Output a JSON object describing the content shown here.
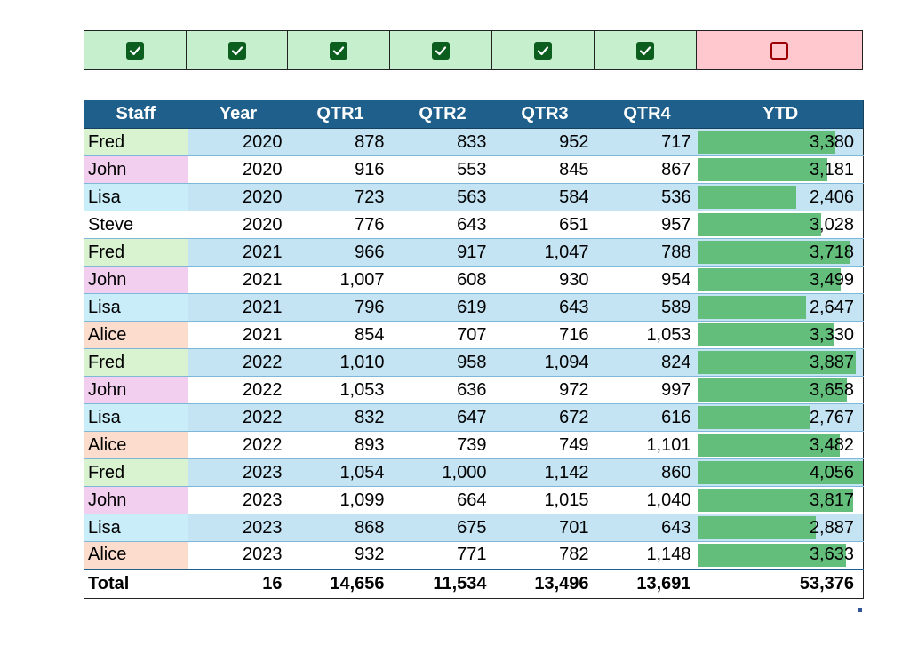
{
  "checkbox_strip": {
    "items": [
      {
        "checked": true
      },
      {
        "checked": true
      },
      {
        "checked": true
      },
      {
        "checked": true
      },
      {
        "checked": true
      },
      {
        "checked": true
      },
      {
        "checked": false
      }
    ]
  },
  "colors": {
    "header_bg": "#1f5f8b",
    "row_band_blue": "#c4e4f4",
    "databar": "#63be7b",
    "checked_bg": "#c6efce",
    "unchecked_bg": "#ffc7ce",
    "staff_colors": {
      "Fred": "#d9f2d0",
      "John": "#f2ceef",
      "Lisa": "#c9eefa",
      "Steve": "#ffffff",
      "Alice": "#fbdccd"
    }
  },
  "table": {
    "headers": [
      "Staff",
      "Year",
      "QTR1",
      "QTR2",
      "QTR3",
      "QTR4",
      "YTD"
    ],
    "ytd_max": 4056,
    "rows": [
      {
        "staff": "Fred",
        "year": "2020",
        "q1": "878",
        "q2": "833",
        "q3": "952",
        "q4": "717",
        "ytd": "3,380",
        "ytd_value": 3380
      },
      {
        "staff": "John",
        "year": "2020",
        "q1": "916",
        "q2": "553",
        "q3": "845",
        "q4": "867",
        "ytd": "3,181",
        "ytd_value": 3181
      },
      {
        "staff": "Lisa",
        "year": "2020",
        "q1": "723",
        "q2": "563",
        "q3": "584",
        "q4": "536",
        "ytd": "2,406",
        "ytd_value": 2406
      },
      {
        "staff": "Steve",
        "year": "2020",
        "q1": "776",
        "q2": "643",
        "q3": "651",
        "q4": "957",
        "ytd": "3,028",
        "ytd_value": 3028
      },
      {
        "staff": "Fred",
        "year": "2021",
        "q1": "966",
        "q2": "917",
        "q3": "1,047",
        "q4": "788",
        "ytd": "3,718",
        "ytd_value": 3718
      },
      {
        "staff": "John",
        "year": "2021",
        "q1": "1,007",
        "q2": "608",
        "q3": "930",
        "q4": "954",
        "ytd": "3,499",
        "ytd_value": 3499
      },
      {
        "staff": "Lisa",
        "year": "2021",
        "q1": "796",
        "q2": "619",
        "q3": "643",
        "q4": "589",
        "ytd": "2,647",
        "ytd_value": 2647
      },
      {
        "staff": "Alice",
        "year": "2021",
        "q1": "854",
        "q2": "707",
        "q3": "716",
        "q4": "1,053",
        "ytd": "3,330",
        "ytd_value": 3330
      },
      {
        "staff": "Fred",
        "year": "2022",
        "q1": "1,010",
        "q2": "958",
        "q3": "1,094",
        "q4": "824",
        "ytd": "3,887",
        "ytd_value": 3887
      },
      {
        "staff": "John",
        "year": "2022",
        "q1": "1,053",
        "q2": "636",
        "q3": "972",
        "q4": "997",
        "ytd": "3,658",
        "ytd_value": 3658
      },
      {
        "staff": "Lisa",
        "year": "2022",
        "q1": "832",
        "q2": "647",
        "q3": "672",
        "q4": "616",
        "ytd": "2,767",
        "ytd_value": 2767
      },
      {
        "staff": "Alice",
        "year": "2022",
        "q1": "893",
        "q2": "739",
        "q3": "749",
        "q4": "1,101",
        "ytd": "3,482",
        "ytd_value": 3482
      },
      {
        "staff": "Fred",
        "year": "2023",
        "q1": "1,054",
        "q2": "1,000",
        "q3": "1,142",
        "q4": "860",
        "ytd": "4,056",
        "ytd_value": 4056
      },
      {
        "staff": "John",
        "year": "2023",
        "q1": "1,099",
        "q2": "664",
        "q3": "1,015",
        "q4": "1,040",
        "ytd": "3,817",
        "ytd_value": 3817
      },
      {
        "staff": "Lisa",
        "year": "2023",
        "q1": "868",
        "q2": "675",
        "q3": "701",
        "q4": "643",
        "ytd": "2,887",
        "ytd_value": 2887
      },
      {
        "staff": "Alice",
        "year": "2023",
        "q1": "932",
        "q2": "771",
        "q3": "782",
        "q4": "1,148",
        "ytd": "3,633",
        "ytd_value": 3633
      }
    ],
    "total": {
      "label": "Total",
      "year": "16",
      "q1": "14,656",
      "q2": "11,534",
      "q3": "13,496",
      "q4": "13,691",
      "ytd": "53,376"
    }
  }
}
